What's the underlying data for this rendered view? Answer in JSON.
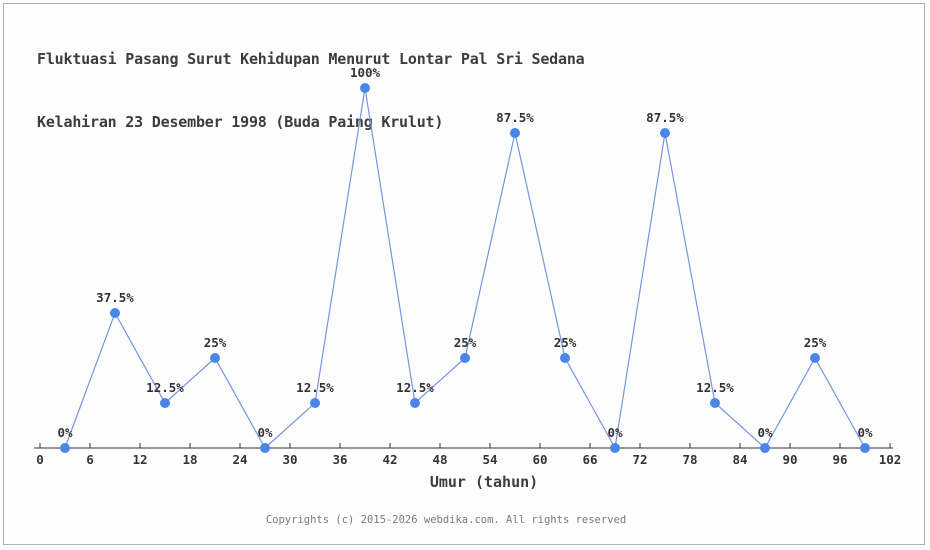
{
  "title": {
    "line1": "Fluktuasi Pasang Surut Kehidupan Menurut Lontar Pal Sri Sedana",
    "line2": "Kelahiran 23 Desember 1998 (Buda Paing Krulut)"
  },
  "chart_data": {
    "type": "line",
    "x": [
      3,
      9,
      15,
      21,
      27,
      33,
      39,
      45,
      51,
      57,
      63,
      69,
      75,
      81,
      87,
      93,
      99
    ],
    "values": [
      0,
      37.5,
      12.5,
      25,
      0,
      12.5,
      100,
      12.5,
      25,
      87.5,
      25,
      0,
      87.5,
      12.5,
      0,
      25,
      0
    ],
    "point_labels": [
      "0%",
      "37.5%",
      "12.5%",
      "25%",
      "0%",
      "12.5%",
      "100%",
      "12.5%",
      "25%",
      "87.5%",
      "25%",
      "0%",
      "87.5%",
      "12.5%",
      "0%",
      "25%",
      "0%"
    ],
    "x_ticks": [
      0,
      6,
      12,
      18,
      24,
      30,
      36,
      42,
      48,
      54,
      60,
      66,
      72,
      78,
      84,
      90,
      96,
      102
    ],
    "xlabel": "Umur (tahun)",
    "xlim": [
      0,
      102
    ],
    "ylim": [
      0,
      100
    ],
    "grid": false,
    "legend": null,
    "marker": "circle",
    "line_color": "#7396e3",
    "marker_color": "#4a86e8",
    "axis_color": "#333333",
    "label_color": "#333333"
  },
  "footer": {
    "copyright": "Copyrights (c) 2015-2026 webdika.com. All rights reserved"
  }
}
